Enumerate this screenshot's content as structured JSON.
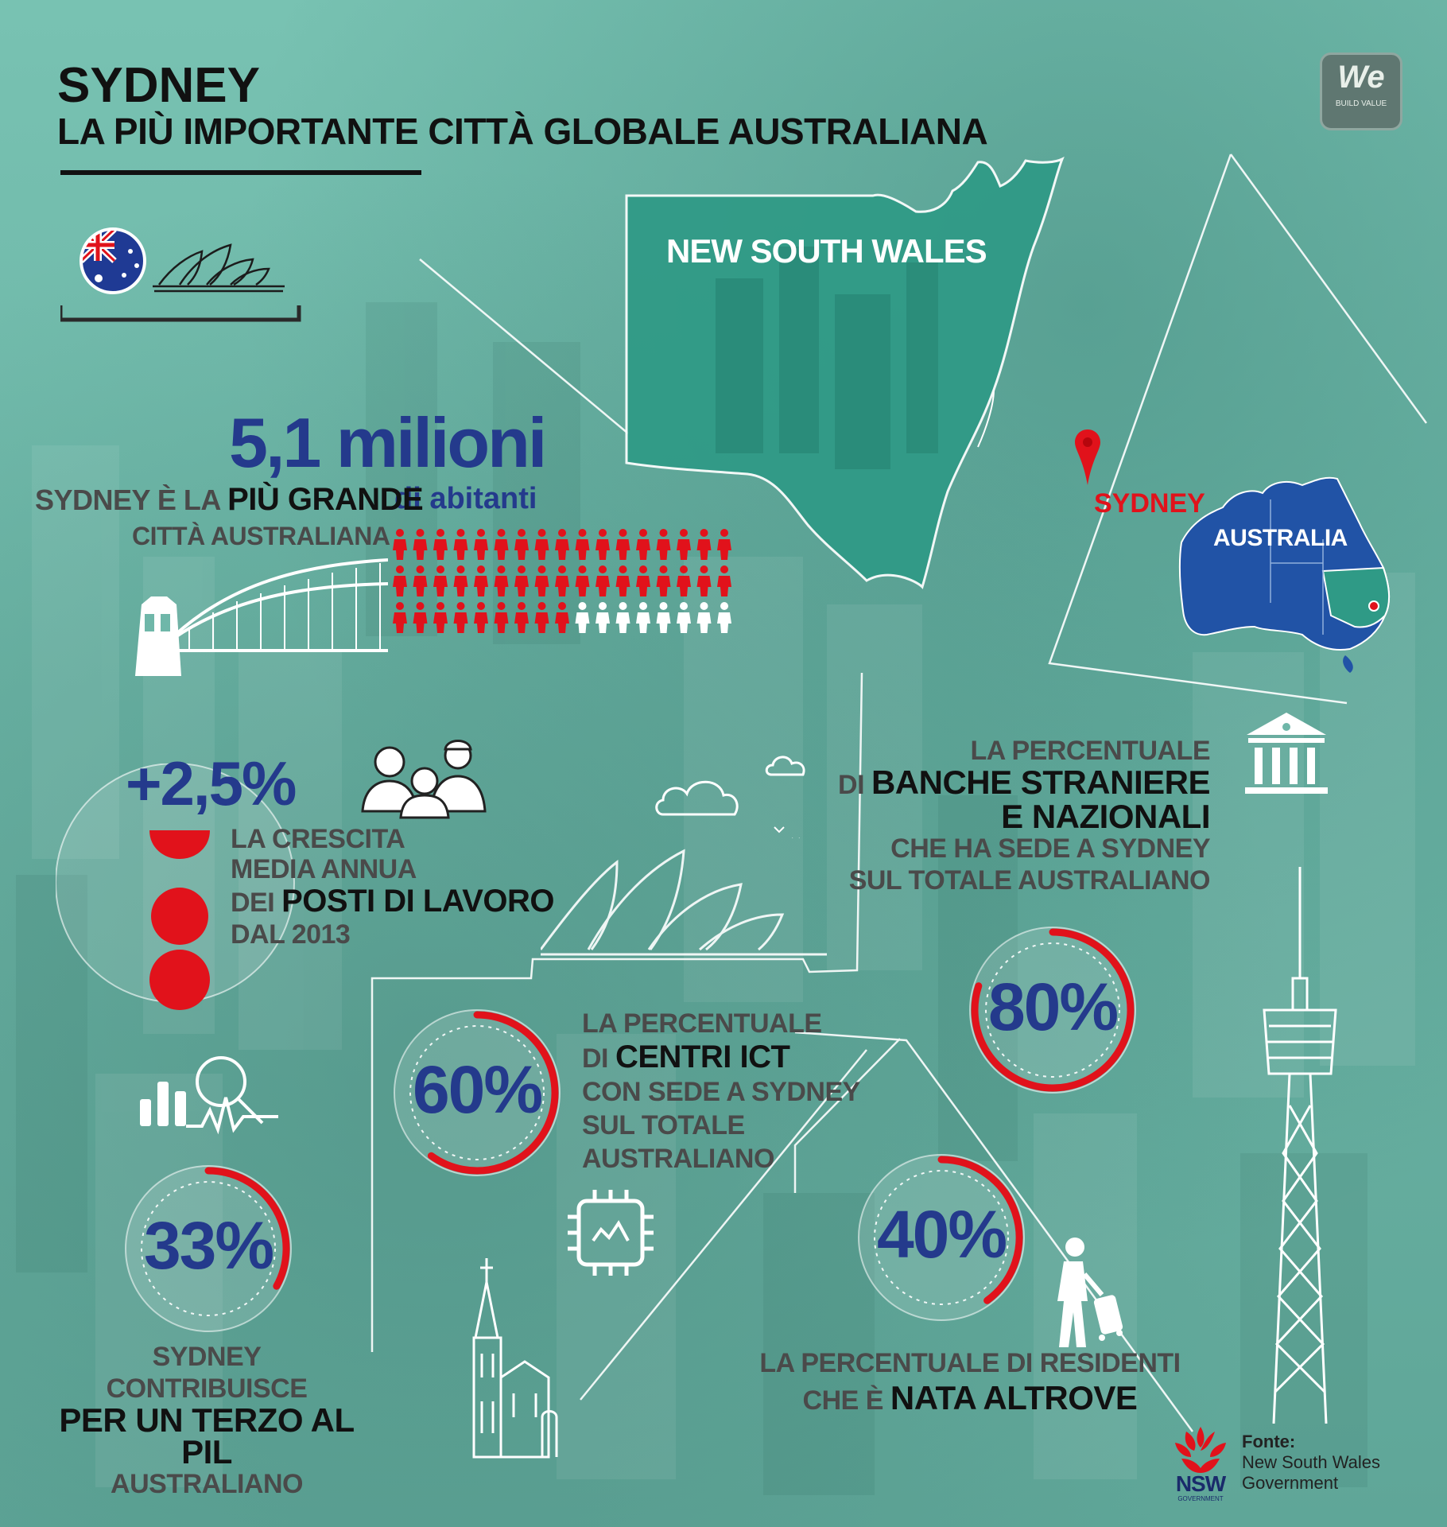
{
  "header": {
    "title": "SYDNEY",
    "subtitle": "LA PIÙ IMPORTANTE CITTÀ GLOBALE AUSTRALIANA"
  },
  "logo": {
    "mark": "We",
    "tagline": "BUILD VALUE"
  },
  "map": {
    "region_label": "NEW SOUTH WALES",
    "city_label": "SYDNEY",
    "country_label": "AUSTRALIA"
  },
  "population": {
    "value": "5,1 milioni",
    "unit": "di abitanti",
    "line1_pre": "SYDNEY È LA ",
    "line1_bold": "PIÙ GRANDE",
    "line2": "CITTÀ AUSTRALIANA",
    "icons_total": 51,
    "icons_highlighted": 43
  },
  "jobs": {
    "value": "+2,5%",
    "l1": "LA CRESCITA",
    "l2": "MEDIA ANNUA",
    "l3_pre": "DEI ",
    "l3_bold": "POSTI DI LAVORO",
    "l4": "DAL 2013"
  },
  "banks": {
    "value": "80%",
    "fraction": 0.8,
    "l1": "LA PERCENTUALE",
    "l2_pre": "DI ",
    "l2_bold": "BANCHE STRANIERE",
    "l3_bold": "E NAZIONALI",
    "l4": "CHE HA SEDE A SYDNEY",
    "l5": "SUL TOTALE AUSTRALIANO"
  },
  "ict": {
    "value": "60%",
    "fraction": 0.6,
    "l1": "LA PERCENTUALE",
    "l2_pre": "DI ",
    "l2_bold": "CENTRI ICT",
    "l3": "CON SEDE A SYDNEY",
    "l4": "SUL TOTALE",
    "l5": "AUSTRALIANO"
  },
  "gdp": {
    "value": "33%",
    "fraction": 0.33,
    "l1": "SYDNEY",
    "l2": "CONTRIBUISCE",
    "l3_bold": "PER UN TERZO AL PIL",
    "l4": "AUSTRALIANO"
  },
  "residents": {
    "value": "40%",
    "fraction": 0.4,
    "l1": "LA PERCENTUALE DI RESIDENTI",
    "l2_pre": "CHE È ",
    "l2_bold": "NATA ALTROVE"
  },
  "source": {
    "badge": "NSW",
    "badge_sub": "GOVERNMENT",
    "label": "Fonte:",
    "line1": "New South Wales",
    "line2": "Government"
  },
  "colors": {
    "accent_red": "#e1121b",
    "accent_blue": "#243a8c",
    "map_green": "#2f9a86"
  },
  "icons": [
    "australia-flag-icon",
    "opera-house-icon",
    "harbour-bridge-icon",
    "workers-icon",
    "cloud-icon",
    "bank-icon",
    "sydney-tower-icon",
    "analytics-icon",
    "chip-icon",
    "church-icon",
    "traveller-icon",
    "waratah-icon"
  ]
}
